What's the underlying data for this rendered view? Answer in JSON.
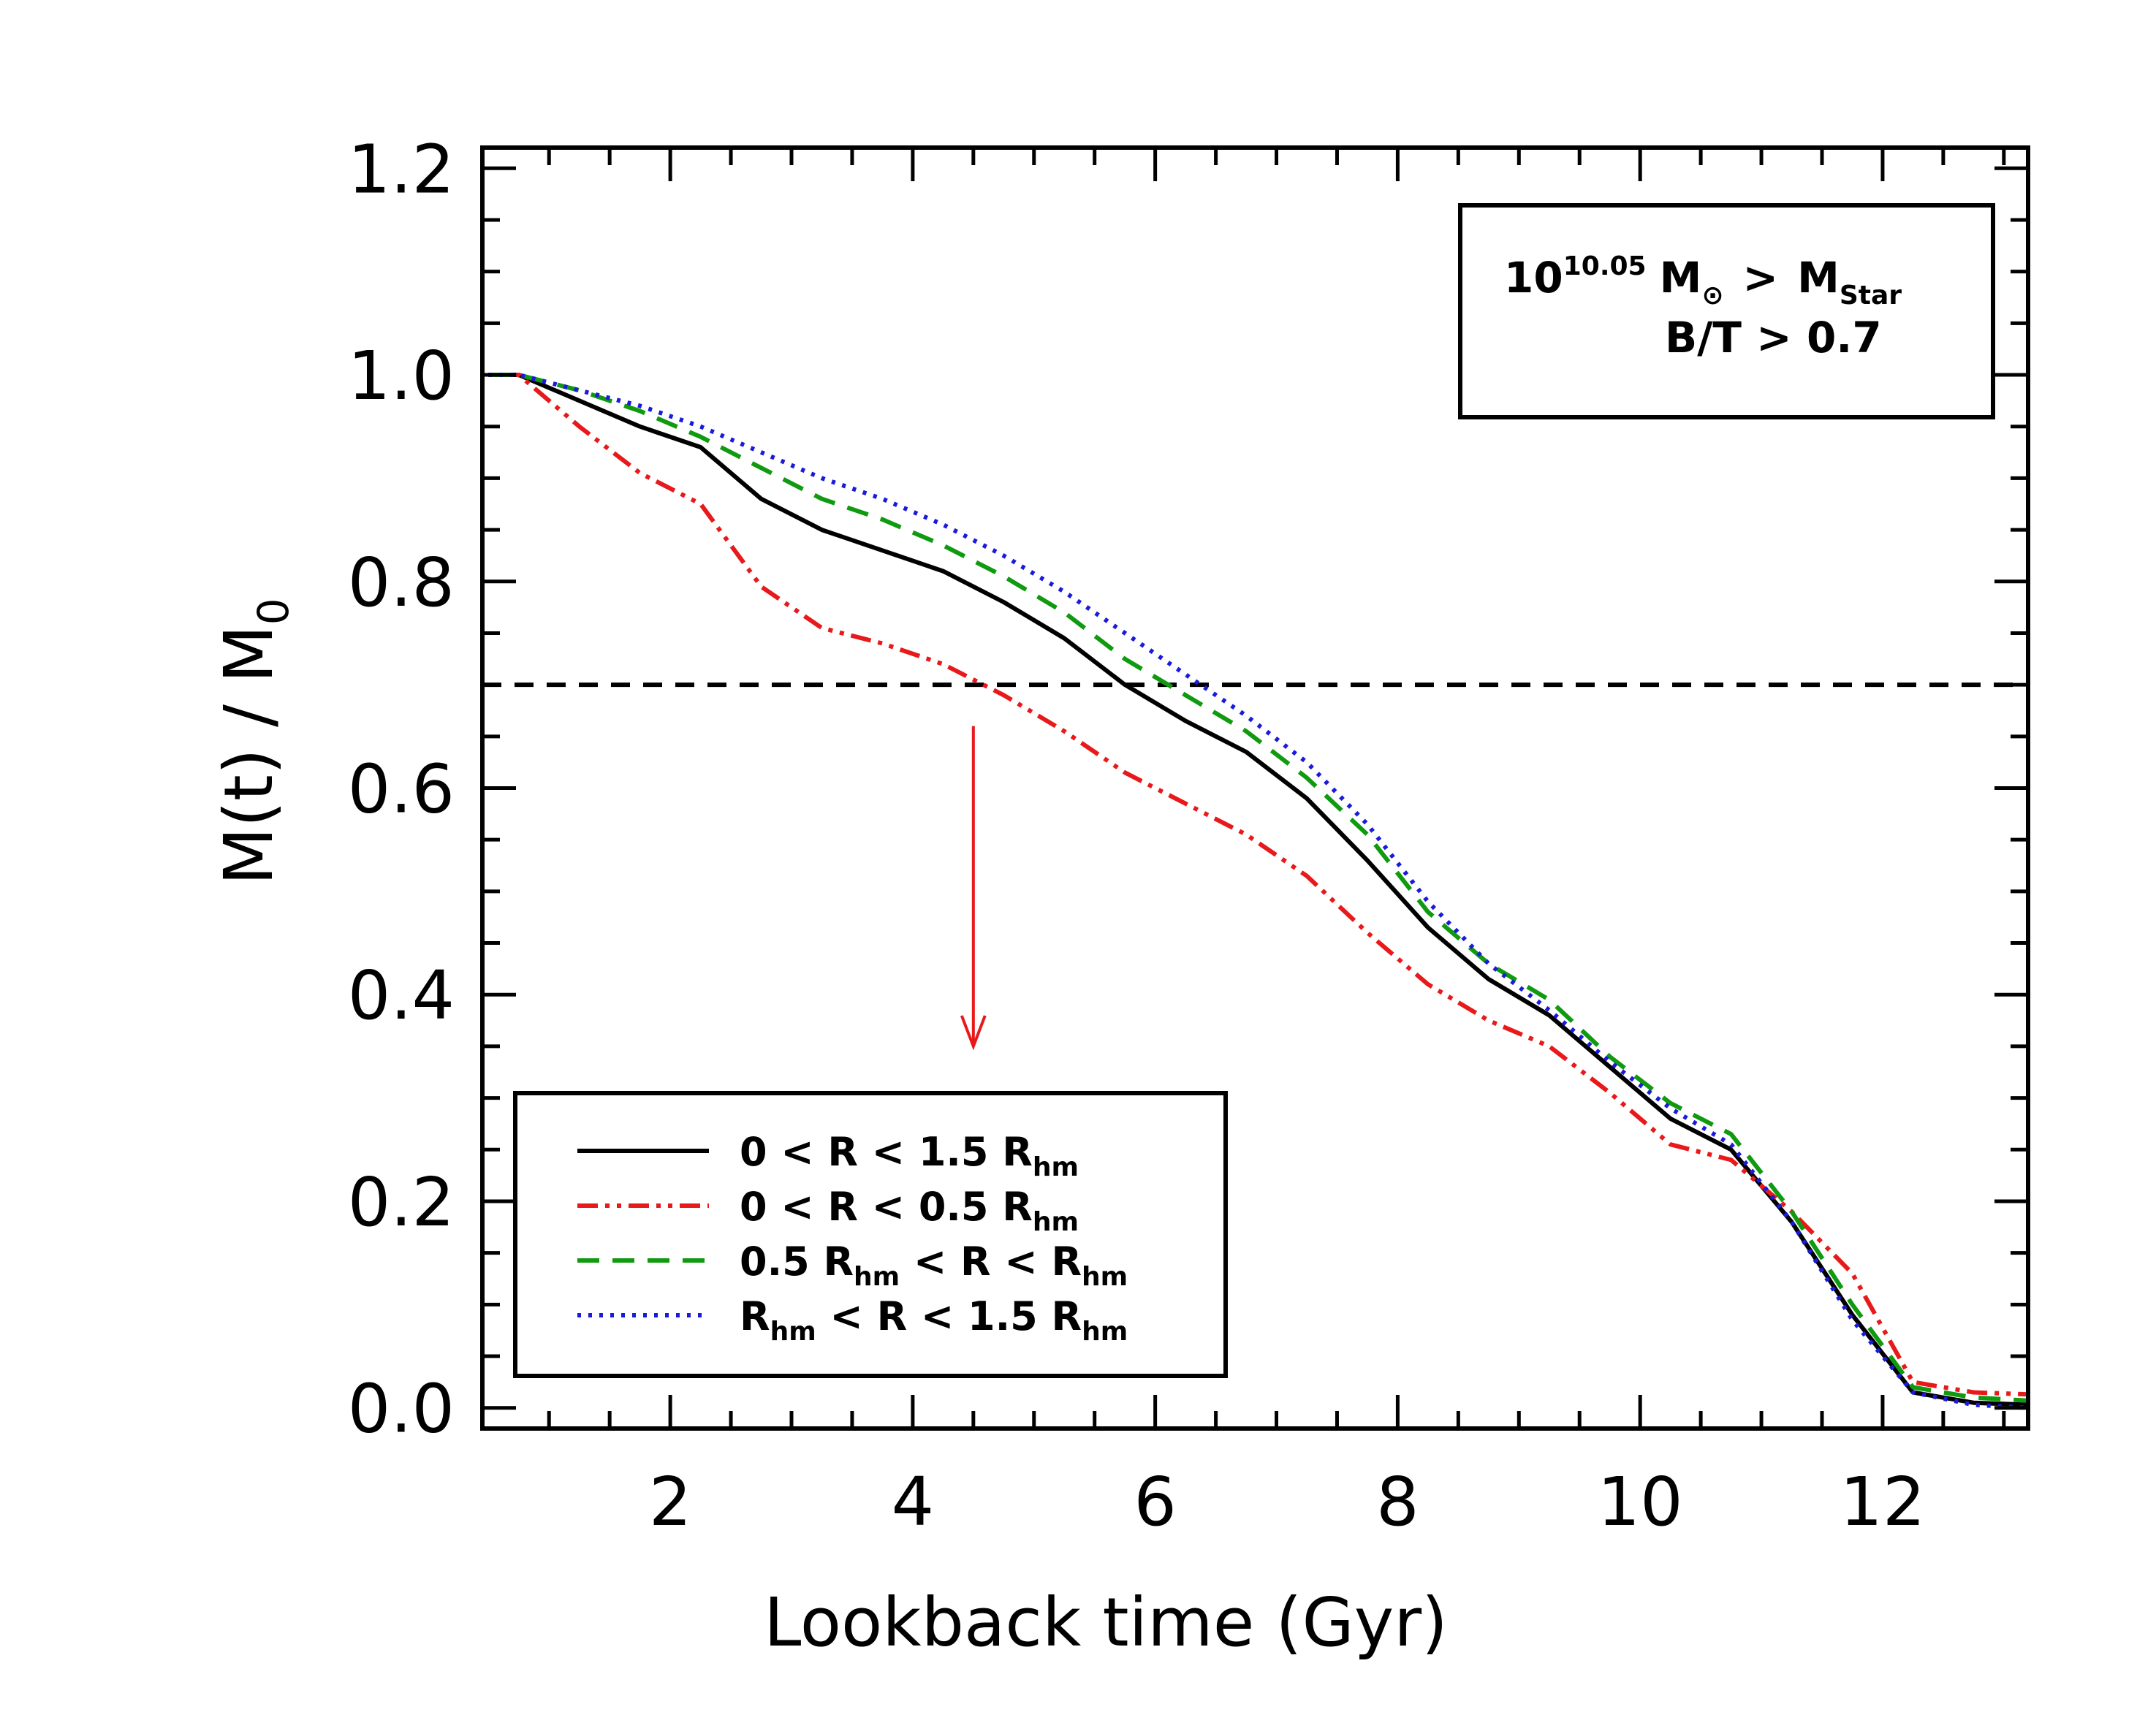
{
  "chart_data": {
    "type": "line",
    "xlabel": "Lookback time (Gyr)",
    "ylabel": "M(t) / M",
    "ylabel_sub": "0",
    "xlim": [
      0.45,
      13.2
    ],
    "ylim": [
      -0.02,
      1.22
    ],
    "x_ticks": [
      2,
      4,
      6,
      8,
      10,
      12
    ],
    "x_tick_labels": [
      "2",
      "4",
      "6",
      "8",
      "10",
      "12"
    ],
    "y_ticks": [
      0.0,
      0.2,
      0.4,
      0.6,
      0.8,
      1.0,
      1.2
    ],
    "y_tick_labels": [
      "0.0",
      "0.2",
      "0.4",
      "0.6",
      "0.8",
      "1.0",
      "1.2"
    ],
    "reference_line": {
      "y": 0.7,
      "style": "dashed",
      "color": "#000000"
    },
    "arrow": {
      "x": 4.5,
      "y_from": 0.66,
      "y_to": 0.35,
      "color": "#e8191b"
    },
    "info_box": {
      "line1_base": "10",
      "line1_exp": "10.05",
      "line1_unit": "M",
      "line1_unit_sub": "⊙",
      "line1_rel": ">",
      "line1_mstar": "M",
      "line1_mstar_sub": "Star",
      "line2": "B/T  >  0.7"
    },
    "series": [
      {
        "name": "0 < R < 1.5 Rhm",
        "legend_parts": [
          "0  <  R  <  1.5  R",
          "hm"
        ],
        "color": "#000000",
        "dash": "solid",
        "x": [
          0.5,
          0.75,
          1.25,
          1.75,
          2.25,
          2.75,
          3.25,
          3.75,
          4.25,
          4.75,
          5.25,
          5.75,
          6.25,
          6.75,
          7.25,
          7.75,
          8.25,
          8.75,
          9.25,
          9.75,
          10.25,
          10.75,
          11.25,
          11.75,
          12.25,
          12.75,
          13.2
        ],
        "y": [
          1.0,
          1.0,
          0.975,
          0.95,
          0.93,
          0.88,
          0.85,
          0.83,
          0.81,
          0.78,
          0.745,
          0.7,
          0.665,
          0.635,
          0.59,
          0.53,
          0.465,
          0.415,
          0.38,
          0.33,
          0.28,
          0.25,
          0.18,
          0.09,
          0.015,
          0.005,
          0.003
        ]
      },
      {
        "name": "0 < R < 0.5 Rhm",
        "legend_parts": [
          "0  <  R  <  0.5  R",
          "hm"
        ],
        "color": "#e8191b",
        "dash": "dashdotdot",
        "x": [
          0.5,
          0.75,
          1.25,
          1.75,
          2.25,
          2.75,
          3.25,
          3.75,
          4.25,
          4.75,
          5.25,
          5.75,
          6.25,
          6.75,
          7.25,
          7.75,
          8.25,
          8.75,
          9.25,
          9.75,
          10.25,
          10.75,
          11.25,
          11.75,
          12.25,
          12.75,
          13.2
        ],
        "y": [
          1.0,
          1.0,
          0.95,
          0.905,
          0.875,
          0.795,
          0.755,
          0.74,
          0.72,
          0.69,
          0.655,
          0.615,
          0.585,
          0.555,
          0.515,
          0.46,
          0.41,
          0.375,
          0.35,
          0.305,
          0.255,
          0.24,
          0.19,
          0.13,
          0.025,
          0.015,
          0.013
        ]
      },
      {
        "name": "0.5 Rhm < R < Rhm",
        "legend_parts": [
          "0.5  R",
          "hm",
          "  <  R  <   R",
          "hm"
        ],
        "color": "#109a10",
        "dash": "dashed",
        "x": [
          0.5,
          0.75,
          1.25,
          1.75,
          2.25,
          2.75,
          3.25,
          3.75,
          4.25,
          4.75,
          5.25,
          5.75,
          6.25,
          6.75,
          7.25,
          7.75,
          8.25,
          8.75,
          9.25,
          9.75,
          10.25,
          10.75,
          11.25,
          11.75,
          12.25,
          12.75,
          13.2
        ],
        "y": [
          1.0,
          1.0,
          0.985,
          0.965,
          0.94,
          0.91,
          0.88,
          0.86,
          0.835,
          0.805,
          0.77,
          0.725,
          0.69,
          0.655,
          0.61,
          0.555,
          0.48,
          0.43,
          0.395,
          0.34,
          0.295,
          0.265,
          0.19,
          0.1,
          0.02,
          0.01,
          0.007
        ]
      },
      {
        "name": "Rhm < R < 1.5 Rhm",
        "legend_parts": [
          "R",
          "hm",
          "  <  R  <  1.5  R",
          "hm"
        ],
        "color": "#1a1adb",
        "dash": "dotted",
        "x": [
          0.5,
          0.75,
          1.25,
          1.75,
          2.25,
          2.75,
          3.25,
          3.75,
          4.25,
          4.75,
          5.25,
          5.75,
          6.25,
          6.75,
          7.25,
          7.75,
          8.25,
          8.75,
          9.25,
          9.75,
          10.25,
          10.75,
          11.25,
          11.75,
          12.25,
          12.75,
          13.2
        ],
        "y": [
          1.0,
          1.0,
          0.985,
          0.97,
          0.95,
          0.925,
          0.9,
          0.88,
          0.855,
          0.825,
          0.79,
          0.75,
          0.71,
          0.67,
          0.625,
          0.565,
          0.49,
          0.43,
          0.385,
          0.335,
          0.29,
          0.255,
          0.18,
          0.085,
          0.015,
          0.003,
          0.0
        ]
      }
    ]
  }
}
